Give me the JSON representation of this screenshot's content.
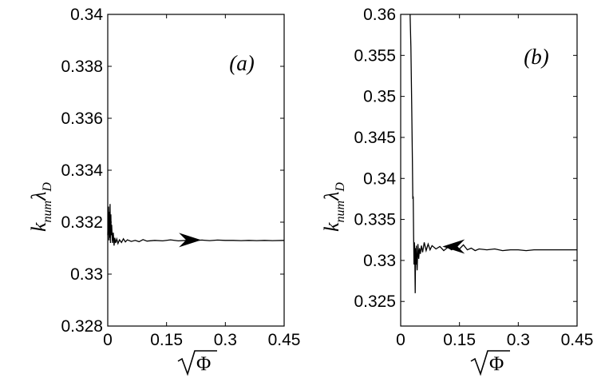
{
  "chart_data": [
    {
      "type": "line",
      "panel_label": "(a)",
      "ylabel_main": "k",
      "ylabel_sub": "num",
      "ylabel_main2": "λ",
      "ylabel_sub2": "D",
      "xlabel_symbol": "Φ",
      "xlim": [
        0,
        0.45
      ],
      "ylim": [
        0.328,
        0.34
      ],
      "x_ticks": [
        0,
        0.15,
        0.3,
        0.45
      ],
      "x_tick_labels": [
        "0",
        "0.15",
        "0.3",
        "0.45"
      ],
      "y_ticks": [
        0.328,
        0.33,
        0.332,
        0.334,
        0.336,
        0.338,
        0.34
      ],
      "y_tick_labels": [
        "0.328",
        "0.33",
        "0.332",
        "0.334",
        "0.336",
        "0.338",
        "0.34"
      ],
      "arrow": {
        "x": 0.21,
        "y": 0.33131,
        "direction": "right"
      },
      "series": [
        {
          "x": [
            0.0,
            0.002,
            0.003,
            0.004,
            0.005,
            0.006,
            0.007,
            0.008,
            0.009,
            0.01,
            0.012,
            0.014,
            0.016,
            0.018,
            0.02,
            0.023,
            0.026,
            0.03,
            0.035,
            0.04,
            0.045,
            0.05,
            0.06,
            0.07,
            0.08,
            0.09,
            0.1,
            0.12,
            0.14,
            0.16,
            0.18,
            0.2,
            0.22,
            0.24,
            0.26,
            0.28,
            0.3,
            0.32,
            0.34,
            0.36,
            0.38,
            0.4,
            0.42,
            0.45
          ],
          "y": [
            0.3315,
            0.3326,
            0.3313,
            0.3324,
            0.3314,
            0.3327,
            0.3312,
            0.3323,
            0.3315,
            0.3319,
            0.3312,
            0.3316,
            0.3311,
            0.3314,
            0.3312,
            0.33135,
            0.33118,
            0.33132,
            0.33122,
            0.33136,
            0.33124,
            0.33132,
            0.33126,
            0.3313,
            0.33125,
            0.33133,
            0.33127,
            0.3313,
            0.33128,
            0.33132,
            0.33128,
            0.3313,
            0.33129,
            0.33131,
            0.33129,
            0.33131,
            0.3313,
            0.3313,
            0.33129,
            0.3313,
            0.33129,
            0.3313,
            0.33129,
            0.3313
          ]
        }
      ]
    },
    {
      "type": "line",
      "panel_label": "(b)",
      "ylabel_main": "k",
      "ylabel_sub": "num",
      "ylabel_main2": "λ",
      "ylabel_sub2": "D",
      "xlabel_symbol": "Φ",
      "xlim": [
        0,
        0.45
      ],
      "ylim": [
        0.322,
        0.36
      ],
      "x_ticks": [
        0,
        0.15,
        0.3,
        0.45
      ],
      "x_tick_labels": [
        "0",
        "0.15",
        "0.3",
        "0.45"
      ],
      "y_ticks": [
        0.325,
        0.33,
        0.335,
        0.34,
        0.345,
        0.35,
        0.355,
        0.36
      ],
      "y_tick_labels": [
        "0.325",
        "0.33",
        "0.335",
        "0.34",
        "0.345",
        "0.35",
        "0.355",
        "0.36"
      ],
      "arrow": {
        "x": 0.135,
        "y": 0.3317,
        "direction": "left"
      },
      "series": [
        {
          "x": [
            0.024,
            0.026,
            0.028,
            0.03,
            0.031,
            0.032,
            0.033,
            0.034,
            0.035,
            0.036,
            0.037,
            0.038,
            0.039,
            0.04,
            0.042,
            0.044,
            0.046,
            0.048,
            0.05,
            0.053,
            0.056,
            0.06,
            0.065,
            0.07,
            0.075,
            0.08,
            0.09,
            0.1,
            0.11,
            0.12,
            0.13,
            0.14,
            0.15,
            0.16,
            0.17,
            0.18,
            0.19,
            0.2,
            0.22,
            0.24,
            0.26,
            0.28,
            0.3,
            0.32,
            0.34,
            0.36,
            0.38,
            0.4,
            0.42,
            0.45
          ],
          "y": [
            0.36,
            0.356,
            0.349,
            0.342,
            0.3375,
            0.3378,
            0.333,
            0.3295,
            0.3322,
            0.3305,
            0.326,
            0.3315,
            0.3295,
            0.3318,
            0.3288,
            0.332,
            0.3302,
            0.3315,
            0.3308,
            0.3318,
            0.331,
            0.3322,
            0.3312,
            0.332,
            0.3313,
            0.3318,
            0.3314,
            0.3317,
            0.3312,
            0.3316,
            0.3313,
            0.3316,
            0.3314,
            0.3319,
            0.3313,
            0.3315,
            0.3312,
            0.3314,
            0.3313,
            0.3314,
            0.3312,
            0.3313,
            0.3313,
            0.3312,
            0.3313,
            0.3313,
            0.3313,
            0.3313,
            0.3313,
            0.3313
          ]
        }
      ]
    }
  ]
}
